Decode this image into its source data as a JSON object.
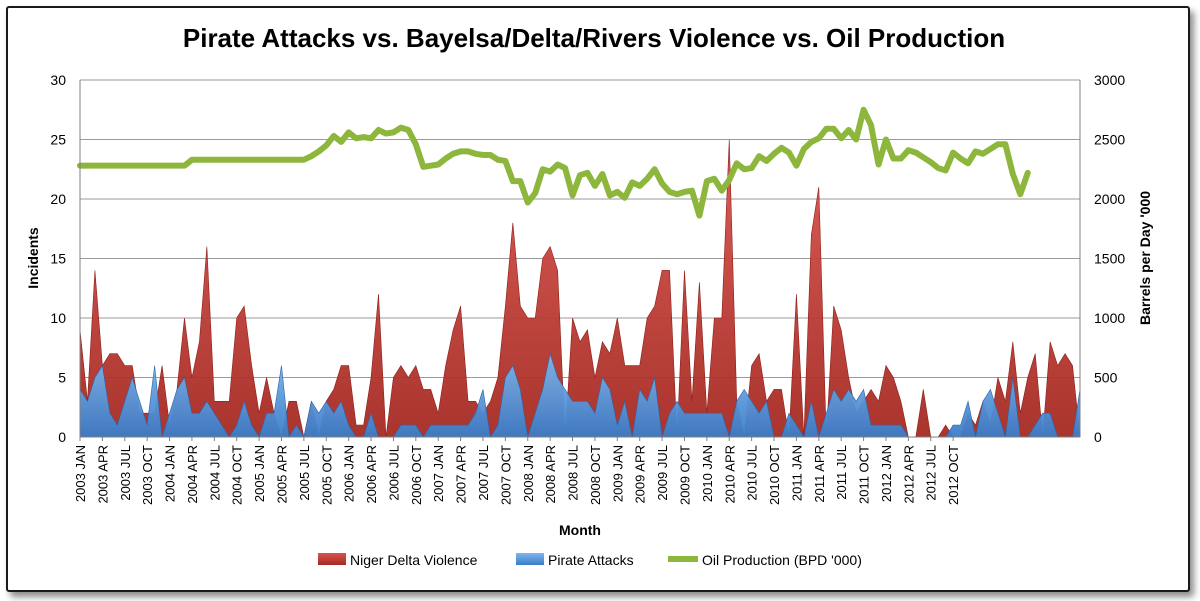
{
  "chart_data": {
    "type": "area",
    "title": "Pirate Attacks vs. Bayelsa/Delta/Rivers Violence vs. Oil Production",
    "xlabel": "Month",
    "ylabel": "Incidents",
    "y2label": "Barrels per Day '000",
    "ylim": [
      0,
      30
    ],
    "y2lim": [
      0,
      3000
    ],
    "yticks": [
      "0",
      "5",
      "10",
      "15",
      "20",
      "25",
      "30"
    ],
    "y2ticks": [
      "0",
      "500",
      "1000",
      "1500",
      "2000",
      "2500",
      "3000"
    ],
    "grid": true,
    "legend_position": "bottom",
    "x_tick_labels": [
      "2003 JAN",
      "2003 APR",
      "2003 JUL",
      "2003 OCT",
      "2004 JAN",
      "2004 APR",
      "2004 JUL",
      "2004 OCT",
      "2005 JAN",
      "2005 APR",
      "2005 JUL",
      "2005 OCT",
      "2006 JAN",
      "2006 APR",
      "2006 JUL",
      "2006 OCT",
      "2007 JAN",
      "2007 APR",
      "2007 JUL",
      "2007 OCT",
      "2008 JAN",
      "2008 APR",
      "2008 JUL",
      "2008 OCT",
      "2009 JAN",
      "2009 APR",
      "2009 JUL",
      "2009 OCT",
      "2010 JAN",
      "2010 APR",
      "2010 JUL",
      "2010 OCT",
      "2011 JAN",
      "2011 APR",
      "2011 JUL",
      "2011 OCT",
      "2012 JAN",
      "2012 APR",
      "2012 JUL",
      "2012 OCT"
    ],
    "series": [
      {
        "name": "Niger Delta Violence",
        "axis": "left",
        "kind": "area",
        "color": "#c0392b",
        "values": [
          9,
          3,
          14,
          6,
          7,
          7,
          6,
          6,
          2,
          2,
          2,
          6,
          1,
          4,
          10,
          5,
          8,
          16,
          3,
          3,
          3,
          10,
          11,
          6,
          2,
          5,
          2,
          0,
          3,
          3,
          0,
          3,
          0,
          3,
          4,
          6,
          6,
          1,
          1,
          5,
          12,
          0,
          5,
          6,
          5,
          6,
          4,
          4,
          2,
          6,
          9,
          11,
          3,
          3,
          2,
          3,
          5,
          11,
          18,
          11,
          10,
          10,
          15,
          16,
          14,
          0,
          10,
          8,
          9,
          5,
          8,
          7,
          10,
          6,
          6,
          6,
          10,
          11,
          14,
          14,
          0,
          14,
          3,
          13,
          2,
          10,
          10,
          25,
          3,
          0,
          6,
          7,
          3,
          4,
          4,
          0,
          12,
          0,
          17,
          21,
          0,
          11,
          9,
          5,
          2,
          3,
          4,
          3,
          6,
          5,
          3,
          0,
          0,
          4,
          0,
          0,
          1,
          0,
          0,
          2,
          1,
          3,
          1,
          5,
          3,
          8,
          2,
          5,
          7,
          0,
          8,
          6,
          7,
          6,
          0
        ]
      },
      {
        "name": "Pirate Attacks",
        "axis": "left",
        "kind": "area",
        "color": "#4a90d9",
        "values": [
          4,
          3,
          5,
          6,
          2,
          1,
          3,
          5,
          3,
          1,
          6,
          0,
          2,
          4,
          5,
          2,
          2,
          3,
          2,
          1,
          0,
          1,
          3,
          1,
          0,
          2,
          2,
          6,
          0,
          1,
          0,
          3,
          2,
          3,
          2,
          3,
          1,
          0,
          0,
          2,
          0,
          0,
          0,
          1,
          1,
          1,
          0,
          1,
          1,
          1,
          1,
          1,
          1,
          2,
          4,
          0,
          1,
          5,
          6,
          4,
          0,
          2,
          4,
          7,
          5,
          4,
          3,
          3,
          3,
          2,
          5,
          4,
          1,
          3,
          0,
          4,
          3,
          5,
          0,
          2,
          3,
          2,
          2,
          2,
          2,
          2,
          2,
          0,
          3,
          4,
          3,
          2,
          3,
          0,
          0,
          2,
          1,
          0,
          3,
          0,
          2,
          4,
          3,
          4,
          3,
          4,
          1,
          1,
          1,
          1,
          1,
          0,
          0,
          0,
          0,
          0,
          0,
          1,
          1,
          3,
          0,
          3,
          4,
          2,
          0,
          5,
          0,
          0,
          1,
          2,
          2,
          0,
          0,
          0,
          4
        ]
      },
      {
        "name": "Oil Production (BPD '000)",
        "axis": "right",
        "kind": "line",
        "color": "#8db63c",
        "values": [
          2280,
          2280,
          2280,
          2280,
          2280,
          2280,
          2280,
          2280,
          2280,
          2280,
          2280,
          2280,
          2280,
          2280,
          2280,
          2330,
          2330,
          2330,
          2330,
          2330,
          2330,
          2330,
          2330,
          2330,
          2330,
          2330,
          2330,
          2330,
          2330,
          2330,
          2330,
          2360,
          2400,
          2450,
          2530,
          2480,
          2560,
          2510,
          2520,
          2510,
          2580,
          2550,
          2560,
          2600,
          2580,
          2460,
          2270,
          2280,
          2290,
          2340,
          2380,
          2400,
          2400,
          2380,
          2370,
          2370,
          2330,
          2320,
          2150,
          2150,
          1970,
          2050,
          2250,
          2230,
          2290,
          2260,
          2030,
          2200,
          2220,
          2110,
          2210,
          2030,
          2060,
          2010,
          2140,
          2110,
          2170,
          2250,
          2130,
          2060,
          2040,
          2060,
          2070,
          1860,
          2150,
          2170,
          2070,
          2160,
          2300,
          2250,
          2260,
          2360,
          2320,
          2380,
          2430,
          2390,
          2280,
          2420,
          2480,
          2510,
          2590,
          2590,
          2510,
          2580,
          2500,
          2750,
          2620,
          2290,
          2500,
          2340,
          2340,
          2410,
          2390,
          2350,
          2310,
          2260,
          2240,
          2390,
          2340,
          2300,
          2400,
          2380,
          2420,
          2460,
          2460,
          2210,
          2040,
          2220
        ]
      }
    ]
  },
  "legend": {
    "items": [
      {
        "label": "Niger Delta Violence",
        "color": "#c0392b"
      },
      {
        "label": "Pirate Attacks",
        "color": "#4a90d9"
      },
      {
        "label": "Oil Production (BPD '000)",
        "color": "#8db63c"
      }
    ]
  }
}
